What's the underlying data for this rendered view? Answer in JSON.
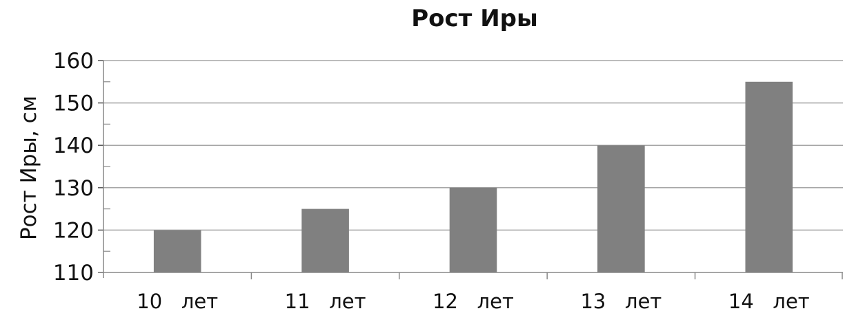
{
  "chart_data": {
    "type": "bar",
    "title": "Рост   Иры",
    "xlabel": "",
    "ylabel": "Рост  Иры,  см",
    "categories": [
      "10   лет",
      "11   лет",
      "12   лет",
      "13   лет",
      "14   лет"
    ],
    "values": [
      120,
      125,
      130,
      140,
      155
    ],
    "ylim": [
      110,
      160
    ],
    "yticks": [
      "110",
      "120",
      "130",
      "140",
      "150",
      "160"
    ],
    "grid": true,
    "bar_color": "#808080",
    "grid_color": "#a6a6a6"
  }
}
